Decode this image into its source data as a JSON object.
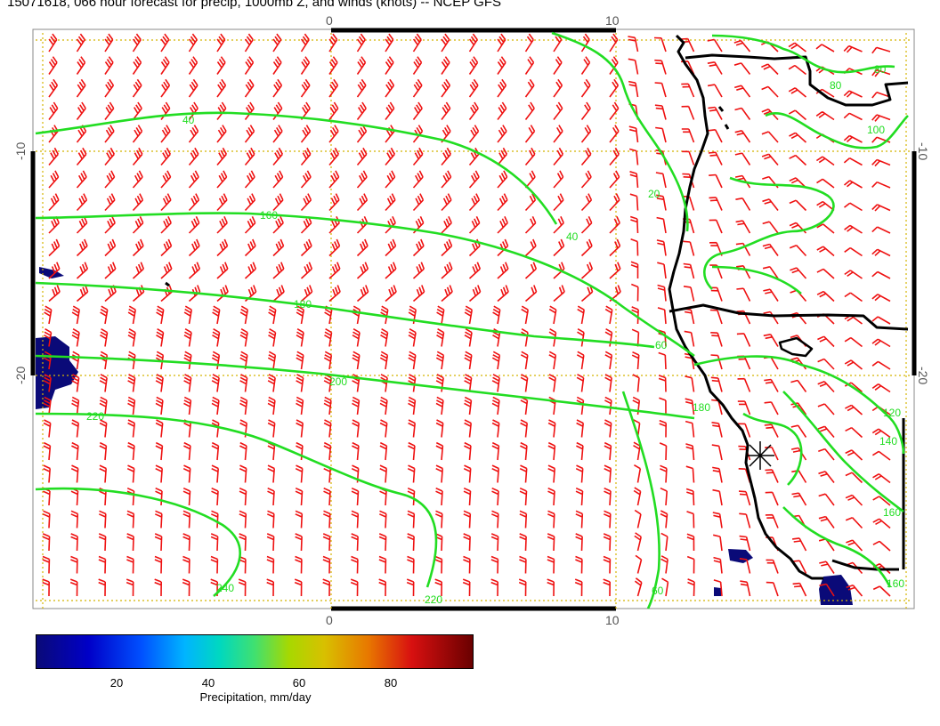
{
  "title": "15071618, 066 hour forecast for precip, 1000mb Z, and winds (knots) -- NCEP GFS",
  "axes": {
    "lon_top_ticks": [
      "0",
      "10"
    ],
    "lon_bottom_ticks": [
      "0",
      "10"
    ],
    "lat_left_ticks": [
      "-10",
      "-20"
    ],
    "lat_right_ticks": [
      "-10",
      "-20"
    ]
  },
  "contours": {
    "color": "#22dd22",
    "labels": [
      "40",
      "160",
      "180",
      "200",
      "220",
      "240",
      "220",
      "20",
      "40",
      "60",
      "180",
      "120",
      "140",
      "160",
      "160",
      "80",
      "80",
      "100",
      "60"
    ]
  },
  "colors": {
    "wind_barbs": "#ee1111",
    "coastline": "#000000",
    "grid": "#d4b300",
    "precip_low": "#0a0a78"
  },
  "colorbar": {
    "ticks": [
      "20",
      "40",
      "60",
      "80"
    ],
    "label": "Precipitation, mm/day"
  }
}
